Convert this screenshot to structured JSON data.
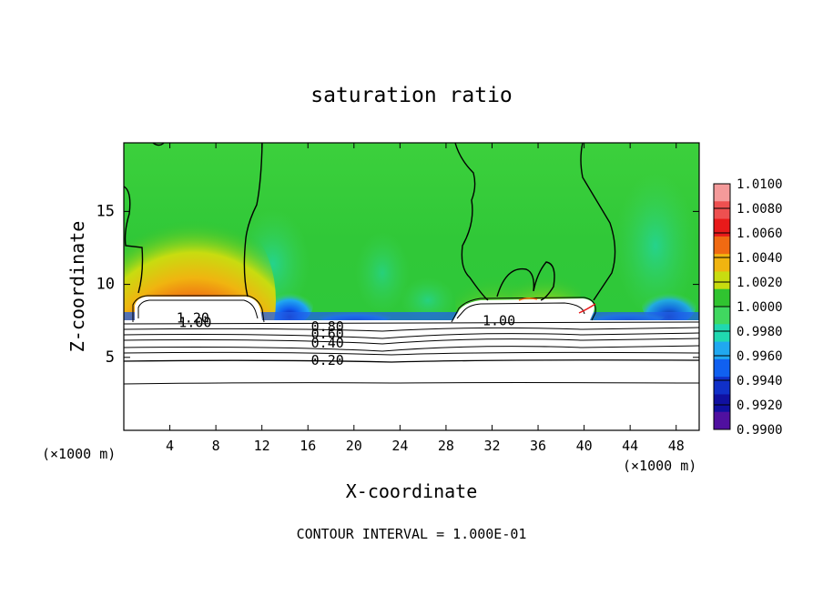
{
  "chart_data": {
    "type": "heatmap",
    "title": "saturation ratio",
    "xlabel": "X-coordinate",
    "ylabel": "Z-coordinate",
    "x_unit_label_left": "(×1000 m)",
    "x_unit_label_right": "(×1000 m)",
    "xlim": [
      0,
      50
    ],
    "ylim": [
      0,
      19.7
    ],
    "xticks": [
      4,
      8,
      12,
      16,
      20,
      24,
      28,
      32,
      36,
      40,
      44,
      48
    ],
    "yticks": [
      5,
      10,
      15
    ],
    "footer": "CONTOUR INTERVAL = 1.000E-01",
    "colorbar": {
      "labels": [
        "1.0100",
        "1.0080",
        "1.0060",
        "1.0040",
        "1.0020",
        "1.0000",
        "0.9980",
        "0.9960",
        "0.9940",
        "0.9920",
        "0.9900"
      ],
      "colors": [
        "#f49a9a",
        "#ee5050",
        "#e81a1a",
        "#f06a12",
        "#f0b410",
        "#c8dc10",
        "#30c430",
        "#40d860",
        "#20d8b0",
        "#20a8f0",
        "#1060f0",
        "#1030c8",
        "#1010a0",
        "#5010a0"
      ]
    },
    "contour_labels": [
      {
        "text": "1.20",
        "x": 6.0,
        "z": 7.7
      },
      {
        "text": "1.00",
        "x": 6.2,
        "z": 7.4
      },
      {
        "text": "1.00",
        "x": 32.6,
        "z": 7.5
      },
      {
        "text": "0.80",
        "x": 17.7,
        "z": 7.1
      },
      {
        "text": "0.60",
        "x": 17.7,
        "z": 6.6
      },
      {
        "text": "0.40",
        "x": 17.7,
        "z": 6.0
      },
      {
        "text": "0.20",
        "x": 17.7,
        "z": 4.8
      }
    ]
  }
}
